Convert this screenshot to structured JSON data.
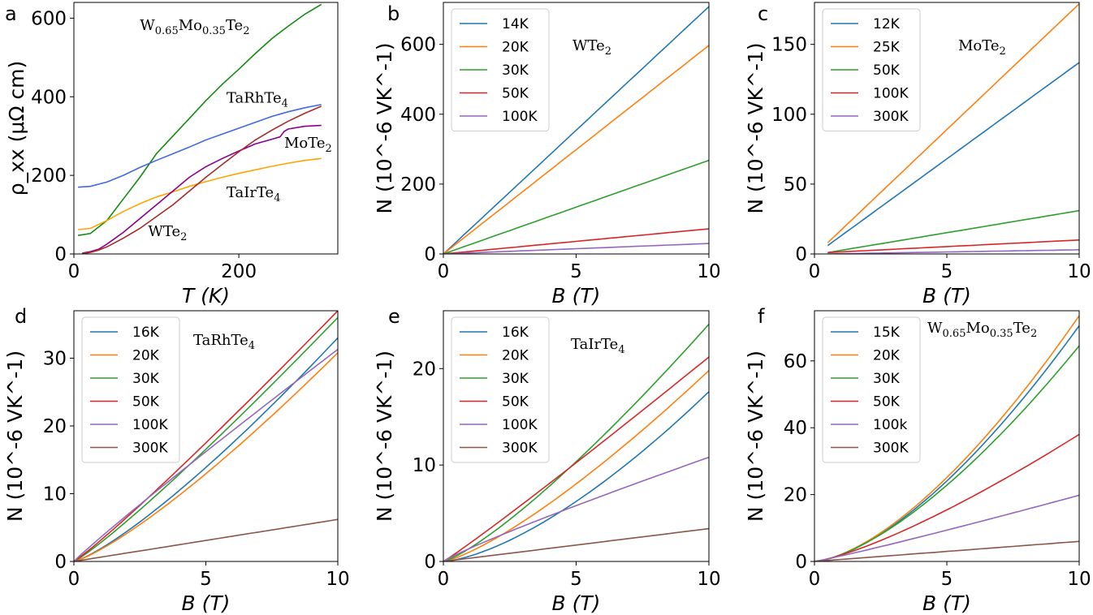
{
  "chart_data": [
    {
      "type": "line",
      "panel": "a",
      "xlabel": "T (K)",
      "ylabel": "ρ_xx (μΩ cm)",
      "xlim": [
        0,
        320
      ],
      "ylim": [
        0,
        640
      ],
      "xticks": [
        0,
        200
      ],
      "yticks": [
        0,
        200,
        400,
        600
      ],
      "legend": "none",
      "annotations": [
        {
          "main": "W",
          "sub": "0.65",
          "main2": "Mo",
          "sub2": "0.35",
          "main3": "Te",
          "sub3": "2",
          "x": 80,
          "y": 570
        },
        {
          "main": "TaRhTe",
          "sub": "4",
          "x": 185,
          "y": 385
        },
        {
          "main": "MoTe",
          "sub": "2",
          "x": 255,
          "y": 270
        },
        {
          "main": "TaIrTe",
          "sub": "4",
          "x": 185,
          "y": 145
        },
        {
          "main": "WTe",
          "sub": "2",
          "x": 90,
          "y": 45
        }
      ],
      "series": [
        {
          "name": "W0.65Mo0.35Te2",
          "color": "#138a13",
          "x": [
            5,
            20,
            40,
            60,
            80,
            100,
            120,
            140,
            160,
            180,
            200,
            220,
            240,
            260,
            280,
            300
          ],
          "values": [
            47,
            52,
            85,
            140,
            195,
            255,
            300,
            345,
            390,
            432,
            470,
            510,
            548,
            580,
            610,
            635
          ]
        },
        {
          "name": "TaRhTe4",
          "color": "#4169e1",
          "x": [
            5,
            20,
            40,
            60,
            80,
            100,
            120,
            140,
            160,
            180,
            200,
            220,
            240,
            260,
            280,
            300
          ],
          "values": [
            170,
            172,
            183,
            200,
            220,
            238,
            255,
            272,
            290,
            305,
            320,
            335,
            350,
            362,
            372,
            380
          ]
        },
        {
          "name": "TaIrTe4",
          "color": "#ffa500",
          "x": [
            5,
            20,
            40,
            60,
            80,
            100,
            120,
            140,
            160,
            180,
            200,
            220,
            240,
            260,
            280,
            300
          ],
          "values": [
            62,
            65,
            85,
            108,
            128,
            145,
            158,
            172,
            184,
            195,
            205,
            214,
            223,
            231,
            238,
            243
          ]
        },
        {
          "name": "MoTe2",
          "color": "#8b008b",
          "x": [
            10,
            20,
            30,
            40,
            60,
            80,
            100,
            120,
            140,
            160,
            180,
            200,
            220,
            240,
            250,
            255,
            260,
            280,
            300
          ],
          "values": [
            2,
            6,
            12,
            25,
            55,
            90,
            125,
            160,
            195,
            222,
            243,
            262,
            280,
            292,
            298,
            312,
            318,
            325,
            327
          ]
        },
        {
          "name": "WTe2",
          "color": "#a52a2a",
          "x": [
            10,
            20,
            30,
            40,
            60,
            80,
            100,
            120,
            140,
            160,
            180,
            200,
            220,
            240,
            260,
            280,
            300
          ],
          "values": [
            1,
            4,
            10,
            18,
            40,
            65,
            95,
            125,
            160,
            195,
            228,
            260,
            290,
            315,
            338,
            358,
            376
          ]
        }
      ]
    },
    {
      "type": "line",
      "panel": "b",
      "title": "WTe2",
      "annot_main": "WTe",
      "annot_sub": "2",
      "xlabel": "B (T)",
      "ylabel": "N (10^-6 VK^-1)",
      "xlim": [
        0,
        10
      ],
      "ylim": [
        0,
        720
      ],
      "xticks": [
        0,
        5,
        10
      ],
      "yticks": [
        0,
        200,
        400,
        600
      ],
      "legend": "top-left",
      "series": [
        {
          "name": "14K",
          "color": "#1f77b4",
          "x": [
            0,
            10
          ],
          "values": [
            0,
            708
          ],
          "curve": 1.0
        },
        {
          "name": "20K",
          "color": "#ff7f0e",
          "x": [
            0,
            10
          ],
          "values": [
            0,
            597
          ],
          "curve": 1.0
        },
        {
          "name": "30K",
          "color": "#2ca02c",
          "x": [
            0,
            10
          ],
          "values": [
            0,
            268
          ],
          "curve": 1.0
        },
        {
          "name": "50K",
          "color": "#d62728",
          "x": [
            0,
            10
          ],
          "values": [
            0,
            72
          ],
          "curve": 1.0
        },
        {
          "name": "100K",
          "color": "#9467bd",
          "x": [
            0,
            10
          ],
          "values": [
            0,
            30
          ],
          "curve": 1.0
        }
      ]
    },
    {
      "type": "line",
      "panel": "c",
      "title": "MoTe2",
      "annot_main": "MoTe",
      "annot_sub": "2",
      "xlabel": "B (T)",
      "ylabel": "N (10^-6 VK^-1)",
      "xlim": [
        0,
        10
      ],
      "ylim": [
        0,
        180
      ],
      "xticks": [
        0,
        5,
        10
      ],
      "yticks": [
        0,
        50,
        100,
        150
      ],
      "legend": "top-left",
      "series": [
        {
          "name": "12K",
          "color": "#1f77b4",
          "x": [
            0.5,
            10
          ],
          "values": [
            6,
            137
          ],
          "curve": 1.0
        },
        {
          "name": "25K",
          "color": "#ff7f0e",
          "x": [
            0.5,
            10
          ],
          "values": [
            8,
            179
          ],
          "curve": 1.0
        },
        {
          "name": "50K",
          "color": "#2ca02c",
          "x": [
            0.5,
            10
          ],
          "values": [
            1,
            31
          ],
          "curve": 1.0
        },
        {
          "name": "100K",
          "color": "#d62728",
          "x": [
            0.5,
            10
          ],
          "values": [
            1,
            10
          ],
          "curve": 1.0
        },
        {
          "name": "300K",
          "color": "#9467bd",
          "x": [
            0.5,
            10
          ],
          "values": [
            0,
            3
          ],
          "curve": 1.0
        }
      ]
    },
    {
      "type": "line",
      "panel": "d",
      "title": "TaRhTe4",
      "annot_main": "TaRhTe",
      "annot_sub": "4",
      "xlabel": "B (T)",
      "ylabel": "N (10^-6 VK^-1)",
      "xlim": [
        0,
        10
      ],
      "ylim": [
        0,
        37
      ],
      "xticks": [
        0,
        5,
        10
      ],
      "yticks": [
        0,
        10,
        20,
        30
      ],
      "legend": "top-left",
      "series": [
        {
          "name": "16K",
          "color": "#1f77b4",
          "x": [
            0,
            10
          ],
          "values": [
            0,
            33
          ],
          "curve": 1.25
        },
        {
          "name": "20K",
          "color": "#ff7f0e",
          "x": [
            0,
            10
          ],
          "values": [
            0,
            30.8
          ],
          "curve": 1.25
        },
        {
          "name": "30K",
          "color": "#2ca02c",
          "x": [
            0,
            10
          ],
          "values": [
            0,
            36
          ],
          "curve": 1.12
        },
        {
          "name": "50K",
          "color": "#d62728",
          "x": [
            0,
            10
          ],
          "values": [
            0,
            37
          ],
          "curve": 1.08
        },
        {
          "name": "100K",
          "color": "#9467bd",
          "x": [
            0,
            10
          ],
          "values": [
            0,
            31.3
          ],
          "curve": 0.95
        },
        {
          "name": "300K",
          "color": "#8c564b",
          "x": [
            0,
            10
          ],
          "values": [
            0,
            6.2
          ],
          "curve": 1.0
        }
      ]
    },
    {
      "type": "line",
      "panel": "e",
      "title": "TaIrTe4",
      "annot_main": "TaIrTe",
      "annot_sub": "4",
      "xlabel": "B (T)",
      "ylabel": "N (10^-6 VK^-1)",
      "xlim": [
        0,
        10
      ],
      "ylim": [
        0,
        26
      ],
      "xticks": [
        0,
        5,
        10
      ],
      "yticks": [
        0,
        10,
        20
      ],
      "legend": "top-left",
      "series": [
        {
          "name": "16K",
          "color": "#1f77b4",
          "x": [
            0,
            10
          ],
          "values": [
            0,
            17.6
          ],
          "curve": 1.5
        },
        {
          "name": "20K",
          "color": "#ff7f0e",
          "x": [
            0,
            10
          ],
          "values": [
            0,
            19.8
          ],
          "curve": 1.3
        },
        {
          "name": "30K",
          "color": "#2ca02c",
          "x": [
            0,
            10
          ],
          "values": [
            0,
            24.6
          ],
          "curve": 1.25
        },
        {
          "name": "50K",
          "color": "#d62728",
          "x": [
            0,
            10
          ],
          "values": [
            0,
            21.2
          ],
          "curve": 1.05
        },
        {
          "name": "100K",
          "color": "#9467bd",
          "x": [
            0,
            10
          ],
          "values": [
            0,
            10.8
          ],
          "curve": 0.9
        },
        {
          "name": "300K",
          "color": "#8c564b",
          "x": [
            0,
            10
          ],
          "values": [
            0,
            3.4
          ],
          "curve": 1.0
        }
      ]
    },
    {
      "type": "line",
      "panel": "f",
      "title": "W0.65Mo0.35Te2",
      "annot_main": "W",
      "annot_sub": "0.65",
      "annot_main2": "Mo",
      "annot_sub2": "0.35",
      "annot_main3": "Te",
      "annot_sub3": "2",
      "xlabel": "B (T)",
      "ylabel": "N (10^-6 VK^-1)",
      "xlim": [
        0,
        10
      ],
      "ylim": [
        0,
        75
      ],
      "xticks": [
        0,
        5,
        10
      ],
      "yticks": [
        0,
        20,
        40,
        60
      ],
      "legend": "top-left",
      "series": [
        {
          "name": "15K",
          "color": "#1f77b4",
          "x": [
            0,
            10
          ],
          "values": [
            0,
            70.5
          ],
          "curve": 1.55
        },
        {
          "name": "20K",
          "color": "#ff7f0e",
          "x": [
            0,
            10
          ],
          "values": [
            0,
            73.5
          ],
          "curve": 1.55
        },
        {
          "name": "30K",
          "color": "#2ca02c",
          "x": [
            0,
            10
          ],
          "values": [
            0,
            64.5
          ],
          "curve": 1.5
        },
        {
          "name": "50K",
          "color": "#d62728",
          "x": [
            0,
            10
          ],
          "values": [
            0,
            38
          ],
          "curve": 1.3
        },
        {
          "name": "100k",
          "color": "#9467bd",
          "x": [
            0,
            10
          ],
          "values": [
            0,
            19.8
          ],
          "curve": 1.08
        },
        {
          "name": "300K",
          "color": "#8c564b",
          "x": [
            0,
            10
          ],
          "values": [
            0,
            6
          ],
          "curve": 1.0
        }
      ]
    }
  ]
}
